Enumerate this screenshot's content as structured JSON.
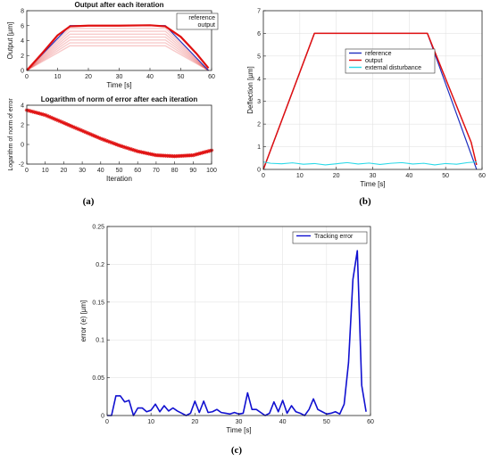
{
  "panel_labels": [
    "(a)",
    "(b)",
    "(c)"
  ],
  "colors": {
    "reference": "#1f2fbf",
    "output": "#e01010",
    "disturbance": "#29d9e8",
    "error": "#1010d0"
  },
  "chart_data": [
    {
      "id": "a-top",
      "type": "line",
      "title": "Output after each iteration",
      "xlabel": "Time [s]",
      "ylabel": "Output [µm]",
      "xlim": [
        0,
        60
      ],
      "ylim": [
        0,
        8
      ],
      "xticks": [
        0,
        10,
        20,
        30,
        40,
        50,
        60
      ],
      "yticks": [
        0,
        2,
        4,
        6,
        8
      ],
      "grid": false,
      "legend": [
        "reference",
        "output"
      ],
      "legend_position": "top-right",
      "series": [
        {
          "name": "reference",
          "x": [
            0,
            14,
            45,
            59
          ],
          "y": [
            0,
            6,
            6,
            0
          ]
        },
        {
          "name": "output",
          "x": [
            0,
            5,
            10,
            14,
            20,
            30,
            40,
            45,
            50,
            55,
            59
          ],
          "y": [
            0,
            2.3,
            4.7,
            5.9,
            6.0,
            6.0,
            6.05,
            5.9,
            4.5,
            2.3,
            0.3
          ]
        }
      ]
    },
    {
      "id": "a-bottom",
      "type": "line",
      "title": "Logarithm of norm of error after each iteration",
      "xlabel": "Iteration",
      "ylabel": "Logarithm of norm of error",
      "xlim": [
        0,
        100
      ],
      "ylim": [
        -2,
        4
      ],
      "xticks": [
        0,
        10,
        20,
        30,
        40,
        50,
        60,
        70,
        80,
        90,
        100
      ],
      "yticks": [
        -2,
        0,
        2,
        4
      ],
      "grid": false,
      "series": [
        {
          "name": "",
          "x": [
            0,
            10,
            20,
            30,
            40,
            50,
            60,
            70,
            80,
            90,
            100
          ],
          "y": [
            3.5,
            3.0,
            2.2,
            1.4,
            0.6,
            -0.1,
            -0.7,
            -1.1,
            -1.2,
            -1.1,
            -0.6
          ]
        }
      ]
    },
    {
      "id": "b",
      "type": "line",
      "title": "",
      "xlabel": "Time [s]",
      "ylabel": "Deflection [µm]",
      "xlim": [
        0,
        60
      ],
      "ylim": [
        0,
        7
      ],
      "xticks": [
        0,
        10,
        20,
        30,
        40,
        50,
        60
      ],
      "yticks": [
        0,
        1,
        2,
        3,
        4,
        5,
        6,
        7
      ],
      "grid": true,
      "legend": [
        "reference",
        "output",
        "external disturbance"
      ],
      "legend_position": "center-right",
      "series": [
        {
          "name": "reference",
          "x": [
            0,
            14,
            45,
            58.5
          ],
          "y": [
            0,
            6,
            6,
            0
          ]
        },
        {
          "name": "output",
          "x": [
            0,
            14,
            45,
            57,
            58.5
          ],
          "y": [
            0,
            6,
            6,
            1.2,
            0.2
          ]
        },
        {
          "name": "external disturbance",
          "x": [
            0,
            2,
            5,
            8,
            11,
            14,
            17,
            20,
            23,
            26,
            29,
            32,
            35,
            38,
            41,
            44,
            47,
            50,
            53,
            56,
            58.5
          ],
          "y": [
            0.33,
            0.27,
            0.25,
            0.29,
            0.23,
            0.26,
            0.2,
            0.25,
            0.3,
            0.24,
            0.28,
            0.22,
            0.27,
            0.3,
            0.24,
            0.27,
            0.2,
            0.26,
            0.23,
            0.3,
            0.33
          ]
        }
      ]
    },
    {
      "id": "c",
      "type": "line",
      "title": "",
      "xlabel": "Time [s]",
      "ylabel": "error (e) [µm]",
      "xlim": [
        0,
        60
      ],
      "ylim": [
        0,
        0.25
      ],
      "xticks": [
        0,
        10,
        20,
        30,
        40,
        50,
        60
      ],
      "yticks": [
        0,
        0.05,
        0.1,
        0.15,
        0.2,
        0.25
      ],
      "grid": true,
      "legend": [
        "Tracking error"
      ],
      "legend_position": "top-right",
      "series": [
        {
          "name": "Tracking error",
          "x": [
            0,
            1,
            2,
            3,
            4,
            5,
            6,
            7,
            8,
            9,
            10,
            11,
            12,
            13,
            14,
            15,
            16,
            17,
            18,
            19,
            20,
            21,
            22,
            23,
            24,
            25,
            26,
            27,
            28,
            29,
            30,
            31,
            32,
            33,
            34,
            35,
            36,
            37,
            38,
            39,
            40,
            41,
            42,
            43,
            44,
            45,
            46,
            47,
            48,
            49,
            50,
            51,
            52,
            53,
            54,
            55,
            56,
            57,
            58,
            59
          ],
          "y": [
            0,
            0,
            0.026,
            0.026,
            0.018,
            0.02,
            0,
            0.01,
            0.01,
            0.005,
            0.007,
            0.015,
            0.005,
            0.013,
            0.006,
            0.01,
            0.006,
            0.003,
            0,
            0.003,
            0.019,
            0.004,
            0.019,
            0.004,
            0.005,
            0.008,
            0.004,
            0.003,
            0.002,
            0.004,
            0.002,
            0.003,
            0.03,
            0.008,
            0.008,
            0.004,
            0,
            0.003,
            0.018,
            0.005,
            0.02,
            0.003,
            0.013,
            0.005,
            0.003,
            0,
            0.008,
            0.022,
            0.008,
            0.005,
            0.002,
            0.003,
            0.005,
            0.002,
            0.015,
            0.07,
            0.18,
            0.218,
            0.04,
            0.005
          ]
        }
      ]
    }
  ]
}
